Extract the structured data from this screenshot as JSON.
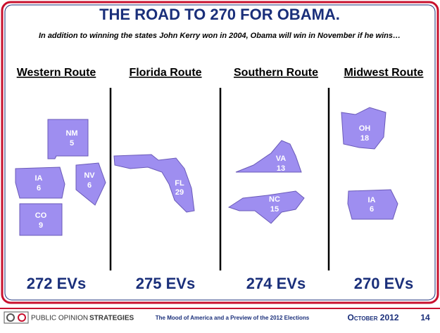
{
  "header": {
    "title": "THE ROAD TO 270 FOR OBAMA.",
    "subtitle": "In addition to winning the states John Kerry won in 2004, Obama will win in November if he wins…"
  },
  "routes": [
    {
      "name": "Western Route",
      "states": [
        {
          "abbr": "NM",
          "ev": 5
        },
        {
          "abbr": "IA",
          "ev": 6
        },
        {
          "abbr": "NV",
          "ev": 6
        },
        {
          "abbr": "CO",
          "ev": 9
        }
      ],
      "total": "272 EVs"
    },
    {
      "name": "Florida Route",
      "states": [
        {
          "abbr": "FL",
          "ev": 29
        }
      ],
      "total": "275 EVs"
    },
    {
      "name": "Southern Route",
      "states": [
        {
          "abbr": "VA",
          "ev": 13
        },
        {
          "abbr": "NC",
          "ev": 15
        }
      ],
      "total": "274 EVs"
    },
    {
      "name": "Midwest Route",
      "states": [
        {
          "abbr": "OH",
          "ev": 18
        },
        {
          "abbr": "IA",
          "ev": 6
        }
      ],
      "total": "270 EVs"
    }
  ],
  "footer": {
    "company_light": "PUBLIC OPINION",
    "company_bold": "STRATEGIES",
    "center": "The Mood of America and a Preview of the 2012 Elections",
    "date": "October 2012",
    "page": "14"
  }
}
